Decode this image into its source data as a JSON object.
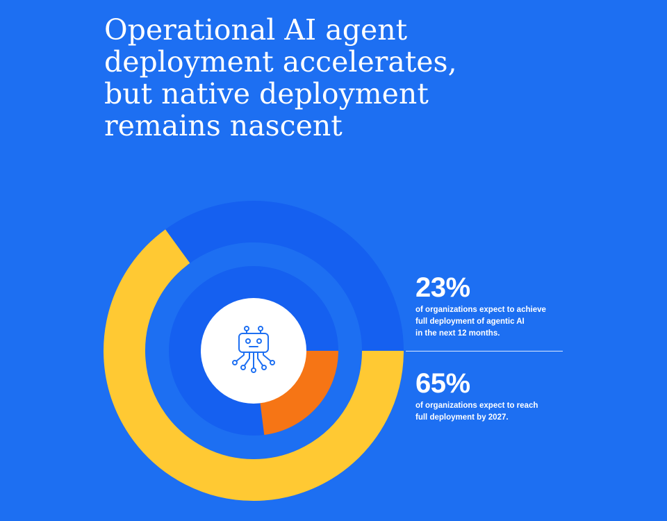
{
  "title": {
    "lines": [
      "Operational AI agent",
      "deployment accelerates,",
      "but native deployment",
      "remains nascent"
    ]
  },
  "stats": [
    {
      "value": "23%",
      "desc_lines": [
        "of organizations expect to achieve",
        "full deployment of agentic AI",
        "in the next 12 months."
      ]
    },
    {
      "value": "65%",
      "desc_lines": [
        "of organizations expect to reach",
        "full deployment by 2027."
      ]
    }
  ],
  "colors": {
    "background": "#1d6ff2",
    "outer_ring_fill": "#ffc933",
    "outer_ring_track": "#1560f0",
    "inner_ring_fill": "#f67515",
    "inner_ring_track": "#1560f0",
    "center": "#ffffff",
    "icon": "#1d6ff2"
  },
  "center_icon": "robot-circuit-icon",
  "chart_data": {
    "type": "pie",
    "rings": [
      {
        "ring": "outer",
        "value": 65,
        "color": "#ffc933"
      },
      {
        "ring": "inner",
        "value": 23,
        "color": "#f67515"
      }
    ],
    "max": 100
  }
}
